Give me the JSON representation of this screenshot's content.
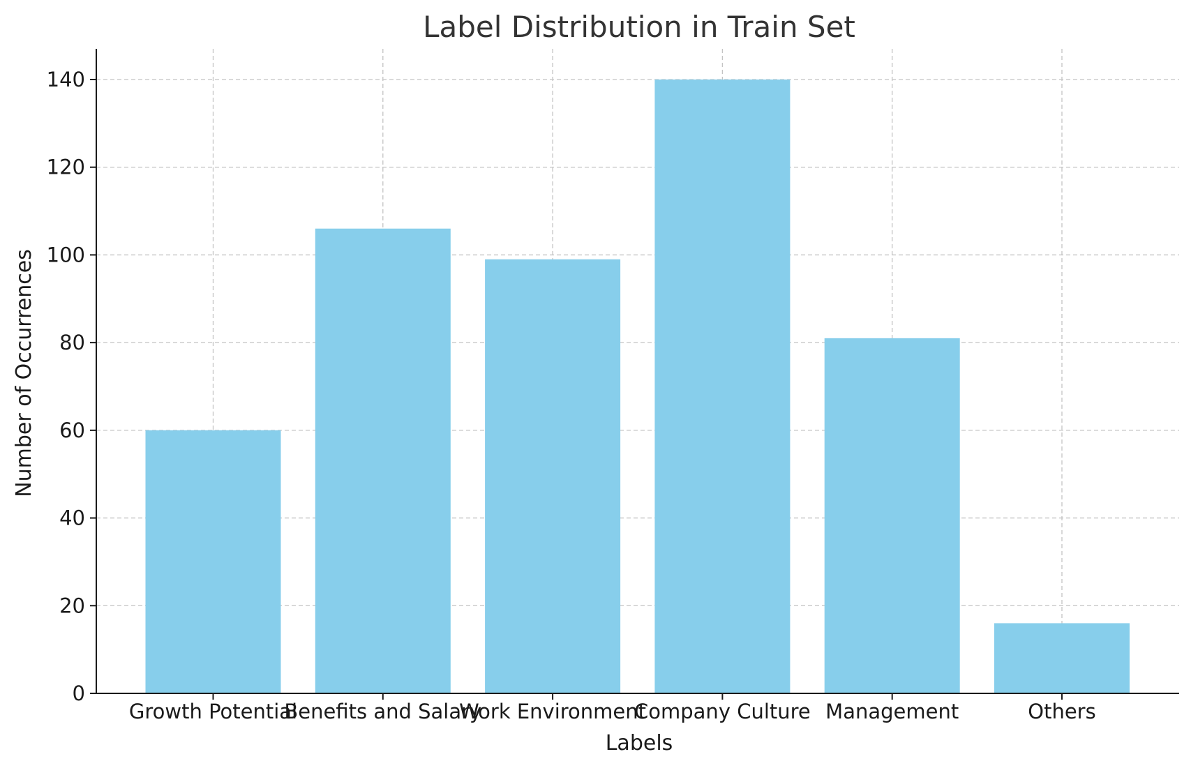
{
  "chart_data": {
    "type": "bar",
    "title": "Label Distribution in Train Set",
    "xlabel": "Labels",
    "ylabel": "Number of Occurrences",
    "categories": [
      "Growth Potential",
      "Benefits and Salary",
      "Work Environment",
      "Company Culture",
      "Management",
      "Others"
    ],
    "values": [
      60,
      106,
      99,
      140,
      81,
      16
    ],
    "ylim": [
      0,
      147
    ],
    "yticks": [
      0,
      20,
      40,
      60,
      80,
      100,
      120,
      140
    ],
    "grid": true,
    "bar_color": "#87CEEB"
  }
}
